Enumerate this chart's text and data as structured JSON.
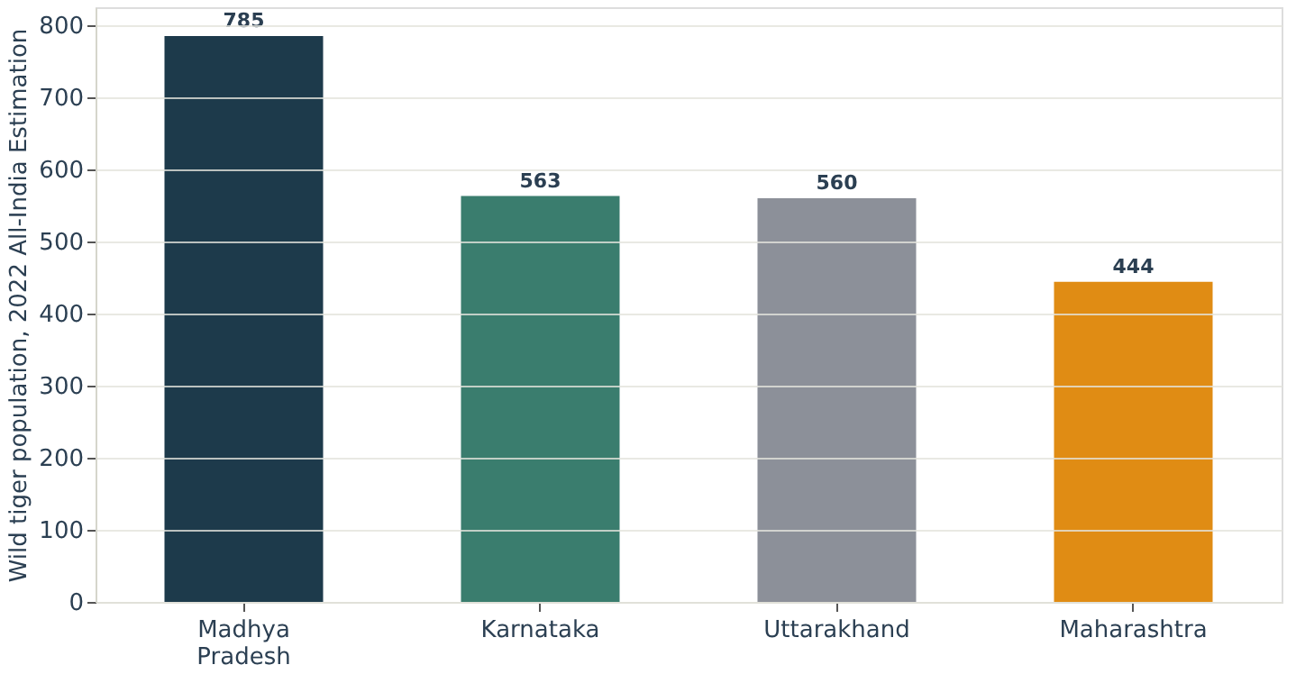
{
  "chart_data": {
    "type": "bar",
    "ylabel": "Wild tiger population, 2022 All-India Estimation",
    "categories": [
      "Madhya Pradesh",
      "Karnataka",
      "Uttarakhand",
      "Maharashtra"
    ],
    "values": [
      785,
      563,
      560,
      444
    ],
    "colors": [
      "#1d3a4b",
      "#3a7d6e",
      "#8c9099",
      "#e08c14"
    ],
    "ylim": [
      0,
      825
    ],
    "yticks": [
      0,
      100,
      200,
      300,
      400,
      500,
      600,
      700,
      800
    ],
    "grid": "y",
    "data_labels": true
  }
}
